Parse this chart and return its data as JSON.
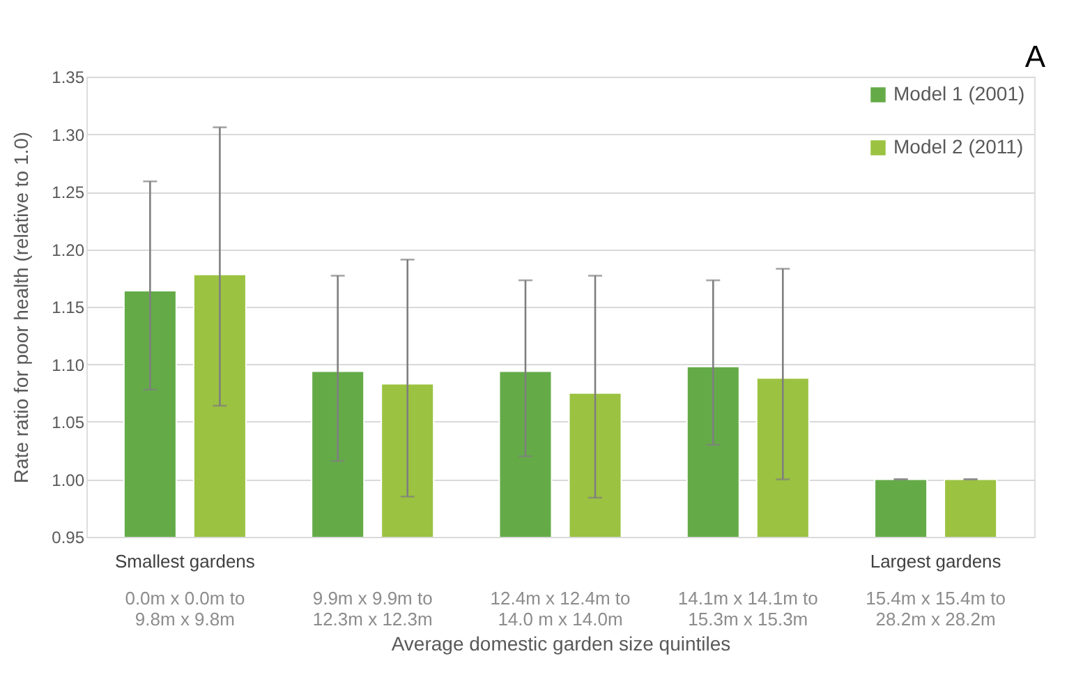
{
  "chart_data": {
    "type": "bar",
    "xlabel": "Average domestic garden size quintiles",
    "ylabel": "Rate ratio for poor health (relative to 1.0)",
    "categories": [
      "0.0m x 0.0m to 9.8m x 9.8m",
      "9.9m x 9.9m to 12.3m x 12.3m",
      "12.4m x 12.4m to 14.0 m x 14.0m",
      "14.1m x 14.1m to 15.3m x 15.3m",
      "15.4m x 15.4m to 28.2m x 28.2m"
    ],
    "series": [
      {
        "name": "Model 1 (2001)",
        "color": "#64ab48",
        "values": [
          1.164,
          1.094,
          1.094,
          1.098,
          1.0
        ],
        "errors": [
          [
            1.078,
            1.259
          ],
          [
            1.016,
            1.177
          ],
          [
            1.02,
            1.173
          ],
          [
            1.03,
            1.173
          ],
          [
            1.0,
            1.0
          ]
        ]
      },
      {
        "name": "Model 2 (2011)",
        "color": "#9bc241",
        "values": [
          1.178,
          1.083,
          1.075,
          1.088,
          1.0
        ],
        "errors": [
          [
            1.064,
            1.306
          ],
          [
            0.985,
            1.191
          ],
          [
            0.984,
            1.177
          ],
          [
            1.0,
            1.183
          ],
          [
            1.0,
            1.0
          ]
        ]
      }
    ],
    "ylim": [
      0.95,
      1.35
    ],
    "yticks": [
      {
        "value": 0.95,
        "label": "0.95"
      },
      {
        "value": 1.0,
        "label": "1.00"
      },
      {
        "value": 1.05,
        "label": "1.05"
      },
      {
        "value": 1.1,
        "label": "1.10"
      },
      {
        "value": 1.15,
        "label": "1.15"
      },
      {
        "value": 1.2,
        "label": "1.20"
      },
      {
        "value": 1.25,
        "label": "1.25"
      },
      {
        "value": 1.3,
        "label": "1.30"
      },
      {
        "value": 1.35,
        "label": "1.35"
      }
    ],
    "grid": "y",
    "legend": "top right",
    "annotations": [
      "Smallest gardens",
      "Largest gardens",
      "A"
    ]
  }
}
